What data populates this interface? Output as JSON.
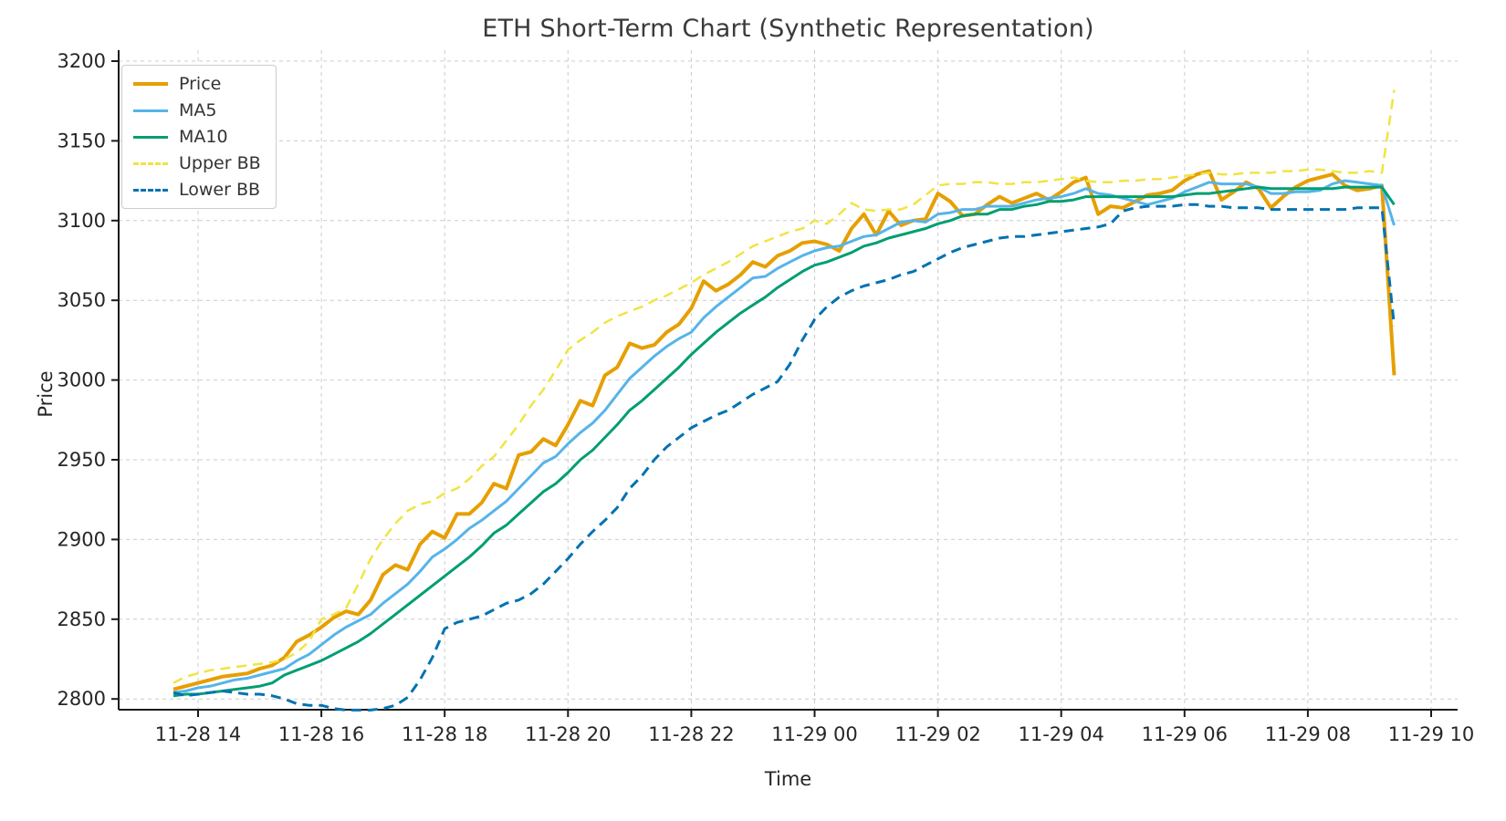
{
  "title": "ETH Short-Term Chart (Synthetic Representation)",
  "chart_data": {
    "type": "line",
    "title": "ETH Short-Term Chart (Synthetic Representation)",
    "xlabel": "Time",
    "ylabel": "Price",
    "grid": true,
    "legend_position": "upper-left",
    "ylim": [
      2770,
      3207
    ],
    "y_ticks": [
      2800,
      2850,
      2900,
      2950,
      3000,
      3050,
      3100,
      3150,
      3200
    ],
    "x_ticks": [
      {
        "hour": 14,
        "label": "11-28 14"
      },
      {
        "hour": 16,
        "label": "11-28 16"
      },
      {
        "hour": 18,
        "label": "11-28 18"
      },
      {
        "hour": 20,
        "label": "11-28 20"
      },
      {
        "hour": 22,
        "label": "11-28 22"
      },
      {
        "hour": 24,
        "label": "11-29 00"
      },
      {
        "hour": 26,
        "label": "11-29 02"
      },
      {
        "hour": 28,
        "label": "11-29 04"
      },
      {
        "hour": 30,
        "label": "11-29 06"
      },
      {
        "hour": 32,
        "label": "11-29 08"
      },
      {
        "hour": 34,
        "label": "11-29 10"
      }
    ],
    "x": [
      13.6,
      13.8,
      14,
      14.2,
      14.4,
      14.6,
      14.8,
      15,
      15.2,
      15.4,
      15.6,
      15.8,
      16,
      16.2,
      16.4,
      16.6,
      16.8,
      17,
      17.2,
      17.4,
      17.6,
      17.8,
      18,
      18.2,
      18.4,
      18.6,
      18.8,
      19,
      19.2,
      19.4,
      19.6,
      19.8,
      20,
      20.2,
      20.4,
      20.6,
      20.8,
      21,
      21.2,
      21.4,
      21.6,
      21.8,
      22,
      22.2,
      22.4,
      22.6,
      22.8,
      23,
      23.2,
      23.4,
      23.6,
      23.8,
      24,
      24.2,
      24.4,
      24.6,
      24.8,
      25,
      25.2,
      25.4,
      25.6,
      25.8,
      26,
      26.2,
      26.4,
      26.6,
      26.8,
      27,
      27.2,
      27.4,
      27.6,
      27.8,
      28,
      28.2,
      28.4,
      28.6,
      28.8,
      29,
      29.2,
      29.4,
      29.6,
      29.8,
      30,
      30.2,
      30.4,
      30.6,
      30.8,
      31,
      31.2,
      31.4,
      31.6,
      31.8,
      32,
      32.2,
      32.4,
      32.6,
      32.8,
      33,
      33.2,
      33.4
    ],
    "series": [
      {
        "name": "Price",
        "color": "#E69F00",
        "dash": "solid",
        "width": 4,
        "values": [
          2806,
          2808,
          2810,
          2812,
          2814,
          2815,
          2816,
          2819,
          2821,
          2826,
          2836,
          2840,
          2845,
          2851,
          2855,
          2853,
          2862,
          2878,
          2884,
          2881,
          2897,
          2905,
          2901,
          2916,
          2916,
          2923,
          2935,
          2932,
          2953,
          2955,
          2963,
          2959,
          2972,
          2987,
          2984,
          3003,
          3008,
          3023,
          3020,
          3022,
          3030,
          3035,
          3045,
          3062,
          3056,
          3060,
          3066,
          3074,
          3071,
          3078,
          3081,
          3086,
          3087,
          3085,
          3081,
          3095,
          3104,
          3091,
          3106,
          3097,
          3100,
          3101,
          3117,
          3112,
          3103,
          3104,
          3110,
          3115,
          3111,
          3114,
          3117,
          3113,
          3118,
          3124,
          3127,
          3104,
          3109,
          3108,
          3112,
          3116,
          3117,
          3119,
          3125,
          3129,
          3131,
          3113,
          3118,
          3124,
          3120,
          3108,
          3115,
          3121,
          3125,
          3127,
          3129,
          3122,
          3119,
          3120,
          3122,
          3003
        ]
      },
      {
        "name": "MA5",
        "color": "#56B4E9",
        "dash": "solid",
        "width": 3,
        "values": [
          2804,
          2805,
          2807,
          2808,
          2810,
          2812,
          2813,
          2815,
          2817,
          2819,
          2824,
          2828,
          2834,
          2840,
          2845,
          2849,
          2853,
          2860,
          2866,
          2872,
          2880,
          2889,
          2894,
          2900,
          2907,
          2912,
          2918,
          2924,
          2932,
          2940,
          2948,
          2952,
          2960,
          2967,
          2973,
          2981,
          2991,
          3001,
          3008,
          3015,
          3021,
          3026,
          3030,
          3039,
          3046,
          3052,
          3058,
          3064,
          3065,
          3070,
          3074,
          3078,
          3081,
          3083,
          3084,
          3087,
          3090,
          3091,
          3095,
          3099,
          3100,
          3099,
          3104,
          3105,
          3107,
          3107,
          3109,
          3109,
          3109,
          3111,
          3113,
          3114,
          3115,
          3117,
          3120,
          3117,
          3116,
          3114,
          3112,
          3110,
          3112,
          3114,
          3118,
          3121,
          3124,
          3123,
          3123,
          3123,
          3121,
          3117,
          3117,
          3118,
          3118,
          3119,
          3123,
          3125,
          3124,
          3123,
          3122,
          3097
        ]
      },
      {
        "name": "MA10",
        "color": "#009E73",
        "dash": "solid",
        "width": 3,
        "values": [
          2802,
          2803,
          2803,
          2804,
          2805,
          2806,
          2807,
          2808,
          2810,
          2815,
          2818,
          2821,
          2824,
          2828,
          2832,
          2836,
          2841,
          2847,
          2853,
          2859,
          2865,
          2871,
          2877,
          2883,
          2889,
          2896,
          2904,
          2909,
          2916,
          2923,
          2930,
          2935,
          2942,
          2950,
          2956,
          2964,
          2972,
          2981,
          2987,
          2994,
          3001,
          3008,
          3016,
          3023,
          3030,
          3036,
          3042,
          3047,
          3052,
          3058,
          3063,
          3068,
          3072,
          3074,
          3077,
          3080,
          3084,
          3086,
          3089,
          3091,
          3093,
          3095,
          3098,
          3100,
          3103,
          3104,
          3104,
          3107,
          3107,
          3109,
          3110,
          3112,
          3112,
          3113,
          3115,
          3115,
          3115,
          3115,
          3115,
          3115,
          3115,
          3115,
          3116,
          3117,
          3117,
          3118,
          3119,
          3120,
          3121,
          3120,
          3120,
          3120,
          3120,
          3120,
          3120,
          3121,
          3121,
          3121,
          3121,
          3110
        ]
      },
      {
        "name": "Upper BB",
        "color": "#F0E442",
        "dash": "dashed",
        "width": 2.5,
        "values": [
          2810,
          2814,
          2816,
          2818,
          2819,
          2820,
          2821,
          2822,
          2823,
          2825,
          2829,
          2836,
          2850,
          2853,
          2857,
          2872,
          2888,
          2900,
          2910,
          2918,
          2922,
          2924,
          2929,
          2932,
          2938,
          2946,
          2952,
          2962,
          2972,
          2984,
          2994,
          3006,
          3019,
          3025,
          3030,
          3036,
          3040,
          3043,
          3046,
          3050,
          3053,
          3057,
          3061,
          3066,
          3070,
          3074,
          3079,
          3084,
          3087,
          3090,
          3093,
          3095,
          3100,
          3098,
          3104,
          3111,
          3107,
          3106,
          3107,
          3107,
          3110,
          3116,
          3122,
          3123,
          3123,
          3124,
          3124,
          3123,
          3123,
          3124,
          3124,
          3125,
          3126,
          3127,
          3125,
          3124,
          3124,
          3125,
          3125,
          3126,
          3126,
          3127,
          3128,
          3129,
          3130,
          3129,
          3129,
          3130,
          3130,
          3130,
          3131,
          3131,
          3132,
          3132,
          3131,
          3130,
          3130,
          3131,
          3130,
          3182
        ]
      },
      {
        "name": "Lower BB",
        "color": "#0072B2",
        "dash": "dashed",
        "width": 3,
        "values": [
          2804,
          2802,
          2803,
          2804,
          2805,
          2804,
          2803,
          2803,
          2802,
          2800,
          2797,
          2796,
          2796,
          2794,
          2793,
          2793,
          2793,
          2794,
          2796,
          2801,
          2812,
          2826,
          2844,
          2848,
          2850,
          2852,
          2856,
          2860,
          2862,
          2866,
          2872,
          2880,
          2888,
          2897,
          2905,
          2912,
          2920,
          2932,
          2940,
          2950,
          2958,
          2964,
          2970,
          2974,
          2978,
          2981,
          2986,
          2991,
          2995,
          2999,
          3010,
          3025,
          3038,
          3046,
          3052,
          3056,
          3059,
          3061,
          3063,
          3066,
          3068,
          3072,
          3076,
          3080,
          3083,
          3085,
          3087,
          3089,
          3090,
          3090,
          3091,
          3092,
          3093,
          3094,
          3095,
          3096,
          3098,
          3106,
          3108,
          3109,
          3109,
          3109,
          3110,
          3110,
          3109,
          3109,
          3108,
          3108,
          3108,
          3107,
          3107,
          3107,
          3107,
          3107,
          3107,
          3107,
          3108,
          3108,
          3108,
          3034
        ]
      }
    ]
  }
}
